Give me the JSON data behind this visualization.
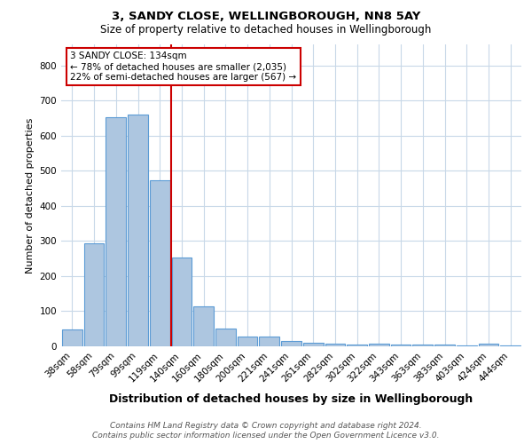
{
  "title1": "3, SANDY CLOSE, WELLINGBOROUGH, NN8 5AY",
  "title2": "Size of property relative to detached houses in Wellingborough",
  "xlabel": "Distribution of detached houses by size in Wellingborough",
  "ylabel": "Number of detached properties",
  "categories": [
    "38sqm",
    "58sqm",
    "79sqm",
    "99sqm",
    "119sqm",
    "140sqm",
    "160sqm",
    "180sqm",
    "200sqm",
    "221sqm",
    "241sqm",
    "261sqm",
    "282sqm",
    "302sqm",
    "322sqm",
    "343sqm",
    "363sqm",
    "383sqm",
    "403sqm",
    "424sqm",
    "444sqm"
  ],
  "values": [
    47,
    293,
    652,
    660,
    474,
    254,
    113,
    51,
    27,
    27,
    14,
    10,
    7,
    5,
    7,
    5,
    5,
    5,
    2,
    8,
    2
  ],
  "bar_color": "#adc6e0",
  "bar_edge_color": "#5b9bd5",
  "ylim": [
    0,
    860
  ],
  "yticks": [
    0,
    100,
    200,
    300,
    400,
    500,
    600,
    700,
    800
  ],
  "property_line_x": 4.5,
  "annotation_line1": "3 SANDY CLOSE: 134sqm",
  "annotation_line2": "← 78% of detached houses are smaller (2,035)",
  "annotation_line3": "22% of semi-detached houses are larger (567) →",
  "red_color": "#cc0000",
  "footer1": "Contains HM Land Registry data © Crown copyright and database right 2024.",
  "footer2": "Contains public sector information licensed under the Open Government Licence v3.0.",
  "bg_color": "#ffffff",
  "grid_color": "#c8d8e8",
  "title1_fontsize": 9.5,
  "title2_fontsize": 8.5,
  "xlabel_fontsize": 9,
  "ylabel_fontsize": 8,
  "tick_fontsize": 7.5,
  "annot_fontsize": 7.5,
  "footer_fontsize": 6.5
}
